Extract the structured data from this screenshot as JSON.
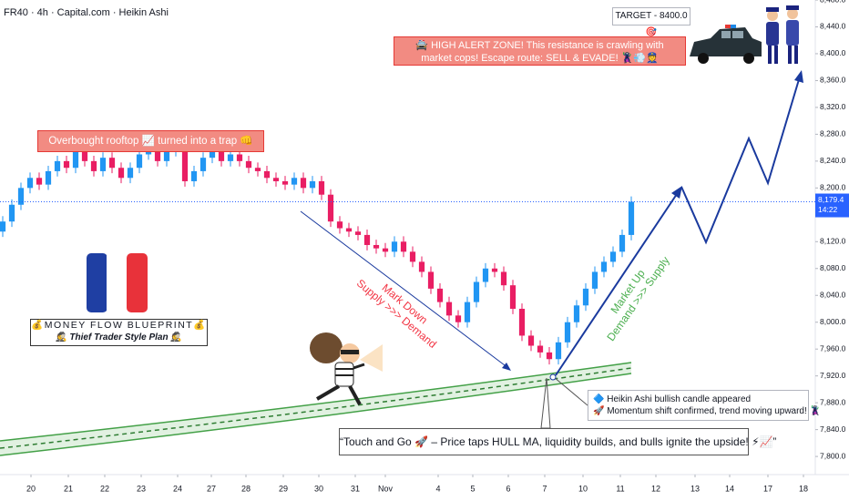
{
  "chart_data": {
    "type": "candlestick",
    "title": "FR40 · 4h · Capital.com · Heikin Ashi",
    "up_color": "#2196f3",
    "down_color": "#e91e63",
    "open": [
      8135,
      8150,
      8175,
      8200,
      8215,
      8205,
      8225,
      8240,
      8230,
      8255,
      8240,
      8225,
      8245,
      8230,
      8215,
      8230,
      8250,
      8260,
      8240,
      8255,
      8270,
      8210,
      8225,
      8245,
      8255,
      8240,
      8250,
      8240,
      8230,
      8225,
      8215,
      8210,
      8205,
      8215,
      8200,
      8210,
      8190,
      8150,
      8140,
      8135,
      8130,
      8115,
      8110,
      8105,
      8120,
      8105,
      8090,
      8075,
      8050,
      8030,
      8010,
      8000,
      8030,
      8060,
      8080,
      8075,
      8055,
      8020,
      7980,
      7965,
      7955,
      7945,
      7970,
      8000,
      8025,
      8050,
      8075,
      8090,
      8105,
      8130
    ],
    "high": [
      8158,
      8183,
      8208,
      8223,
      8223,
      8233,
      8248,
      8248,
      8263,
      8263,
      8248,
      8253,
      8253,
      8238,
      8238,
      8258,
      8268,
      8268,
      8263,
      8278,
      8278,
      8233,
      8253,
      8263,
      8263,
      8258,
      8258,
      8248,
      8238,
      8233,
      8223,
      8218,
      8223,
      8223,
      8218,
      8218,
      8198,
      8158,
      8148,
      8143,
      8138,
      8123,
      8118,
      8128,
      8128,
      8113,
      8098,
      8083,
      8058,
      8038,
      8018,
      8038,
      8068,
      8088,
      8088,
      8083,
      8063,
      8028,
      7988,
      7973,
      7963,
      7978,
      8008,
      8033,
      8058,
      8083,
      8098,
      8113,
      8138,
      8187.4
    ],
    "low": [
      8127,
      8142,
      8167,
      8192,
      8197,
      8197,
      8217,
      8222,
      8222,
      8232,
      8217,
      8217,
      8222,
      8207,
      8207,
      8222,
      8242,
      8232,
      8232,
      8247,
      8202,
      8202,
      8217,
      8237,
      8232,
      8232,
      8232,
      8222,
      8217,
      8207,
      8202,
      8197,
      8197,
      8192,
      8192,
      8182,
      8142,
      8132,
      8127,
      8122,
      8107,
      8102,
      8097,
      8097,
      8097,
      8082,
      8067,
      8042,
      8022,
      8002,
      7992,
      7992,
      8022,
      8052,
      8067,
      8047,
      8012,
      7972,
      7957,
      7947,
      7937,
      7937,
      7962,
      7992,
      8017,
      8042,
      8067,
      8082,
      8097,
      8122
    ],
    "close": [
      8150,
      8175,
      8200,
      8215,
      8205,
      8225,
      8240,
      8230,
      8255,
      8240,
      8225,
      8245,
      8230,
      8215,
      8230,
      8250,
      8260,
      8240,
      8255,
      8270,
      8210,
      8225,
      8245,
      8255,
      8240,
      8250,
      8240,
      8230,
      8225,
      8215,
      8210,
      8205,
      8215,
      8200,
      8210,
      8190,
      8150,
      8140,
      8135,
      8130,
      8115,
      8110,
      8105,
      8120,
      8105,
      8090,
      8075,
      8050,
      8030,
      8010,
      8000,
      8030,
      8060,
      8080,
      8075,
      8055,
      8020,
      7980,
      7965,
      7955,
      7945,
      7970,
      8000,
      8025,
      8050,
      8075,
      8090,
      8105,
      8130,
      8179.4
    ],
    "xlim": [
      -0.3,
      89.2
    ],
    "xticks": [
      {
        "value": 3.1,
        "label": "20"
      },
      {
        "value": 7.2,
        "label": "21"
      },
      {
        "value": 11.2,
        "label": "22"
      },
      {
        "value": 15.2,
        "label": "23"
      },
      {
        "value": 19.2,
        "label": "24"
      },
      {
        "value": 22.9,
        "label": "27"
      },
      {
        "value": 26.7,
        "label": "28"
      },
      {
        "value": 30.8,
        "label": "29"
      },
      {
        "value": 34.7,
        "label": "30"
      },
      {
        "value": 38.7,
        "label": "31"
      },
      {
        "value": 42,
        "label": "Nov"
      },
      {
        "value": 47.8,
        "label": "4"
      },
      {
        "value": 51.6,
        "label": "5"
      },
      {
        "value": 55.5,
        "label": "6"
      },
      {
        "value": 59.5,
        "label": "7"
      },
      {
        "value": 63.7,
        "label": "10"
      },
      {
        "value": 67.8,
        "label": "11"
      },
      {
        "value": 71.7,
        "label": "12"
      },
      {
        "value": 76,
        "label": "13"
      },
      {
        "value": 79.8,
        "label": "14"
      },
      {
        "value": 84,
        "label": "17"
      },
      {
        "value": 87.9,
        "label": "18"
      }
    ],
    "ylim": [
      7773,
      8480
    ],
    "yticks": [
      {
        "value": 7800,
        "label": "7,800.0"
      },
      {
        "value": 7840,
        "label": "7,840.0"
      },
      {
        "value": 7880,
        "label": "7,880.0"
      },
      {
        "value": 7920,
        "label": "7,920.0"
      },
      {
        "value": 7960,
        "label": "7,960.0"
      },
      {
        "value": 8000,
        "label": "8,000.0"
      },
      {
        "value": 8040,
        "label": "8,040.0"
      },
      {
        "value": 8080,
        "label": "8,080.0"
      },
      {
        "value": 8120,
        "label": "8,120.0"
      },
      {
        "value": 8200,
        "label": "8,200.0"
      },
      {
        "value": 8240,
        "label": "8,240.0"
      },
      {
        "value": 8280,
        "label": "8,280.0"
      },
      {
        "value": 8320,
        "label": "8,320.0"
      },
      {
        "value": 8360,
        "label": "8,360.0"
      },
      {
        "value": 8400,
        "label": "8,400.0"
      },
      {
        "value": 8440,
        "label": "8,440.0"
      },
      {
        "value": 8480,
        "label": "8,480.0"
      }
    ],
    "last_price": {
      "value": 8179.4,
      "label": "8,179.4"
    },
    "countdown": "14:22",
    "annotations": {
      "target": "TARGET - 8400.0🎯",
      "alert": "🚔 HIGH ALERT ZONE! This resistance is crawling with market cops! Escape route: SELL & EVADE! 🦹‍♂️💨👮",
      "rooftop": "Overbought rooftop 📈 turned into a trap 👊",
      "mark_down": [
        "Mark Down",
        "Supply >>> Demand"
      ],
      "market_up": [
        "Market Up",
        "Demand >>> Supply"
      ],
      "brand_title": "💰MONEY FLOW BLUEPRINT💰",
      "brand_subtitle": "🕵️ Thief Trader Style Plan 🕵️",
      "callout": [
        "🔷 Heikin Ashi bullish candle appeared",
        "🚀 Momentum shift confirmed, trend moving upward! 🦹"
      ],
      "quote": "“Touch and Go 🚀 – Price taps HULL MA, liquidity builds, and bulls ignite the upside! ⚡📈”"
    }
  }
}
